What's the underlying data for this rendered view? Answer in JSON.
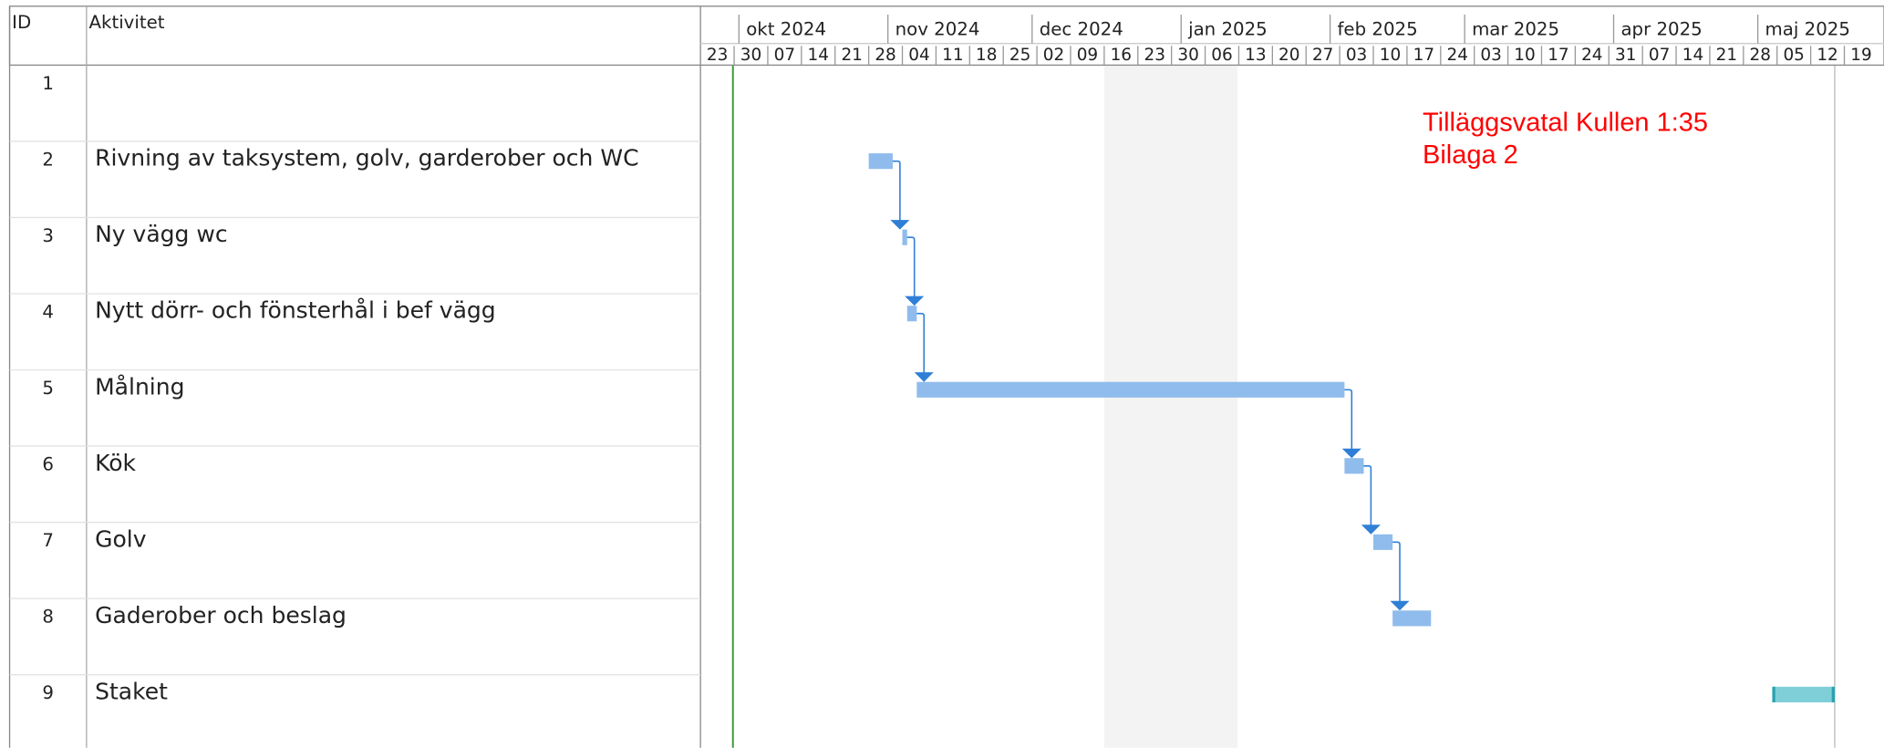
{
  "header": {
    "id": "ID",
    "activity": "Aktivitet"
  },
  "timeline": {
    "range": [
      "2024-09-23",
      "2025-05-26"
    ],
    "months": [
      {
        "label": "okt 2024",
        "date": "2024-10-01"
      },
      {
        "label": "nov 2024",
        "date": "2024-11-01"
      },
      {
        "label": "dec 2024",
        "date": "2024-12-01"
      },
      {
        "label": "jan 2025",
        "date": "2025-01-01"
      },
      {
        "label": "feb 2025",
        "date": "2025-02-01"
      },
      {
        "label": "mar 2025",
        "date": "2025-03-01"
      },
      {
        "label": "apr 2025",
        "date": "2025-04-01"
      },
      {
        "label": "maj 2025",
        "date": "2025-05-01"
      }
    ],
    "weeks": [
      "23",
      "30",
      "07",
      "14",
      "21",
      "28",
      "04",
      "11",
      "18",
      "25",
      "02",
      "09",
      "16",
      "23",
      "30",
      "06",
      "13",
      "20",
      "27",
      "03",
      "10",
      "17",
      "24",
      "03",
      "10",
      "17",
      "24",
      "31",
      "07",
      "14",
      "21",
      "28",
      "05",
      "12",
      "19"
    ]
  },
  "annotation": [
    "Tilläggsvatal Kullen  1:35",
    "Bilaga 2"
  ],
  "rows": [
    {
      "id": "1"
    },
    {
      "id": "2",
      "name": "Rivning av taksystem, golv, garderober och WC",
      "start": "2024-10-28",
      "end": "2024-11-02",
      "color": "#8fbcec"
    },
    {
      "id": "3",
      "name": "Ny vägg wc",
      "start": "2024-11-04",
      "end": "2024-11-05",
      "color": "#8fbcec"
    },
    {
      "id": "4",
      "name": "Nytt dörr- och fönsterhål i bef vägg",
      "start": "2024-11-05",
      "end": "2024-11-07",
      "color": "#8fbcec"
    },
    {
      "id": "5",
      "name": "Målning",
      "start": "2024-11-07",
      "end": "2025-02-04",
      "color": "#8fbcec"
    },
    {
      "id": "6",
      "name": "Kök",
      "start": "2025-02-04",
      "end": "2025-02-08",
      "color": "#8fbcec"
    },
    {
      "id": "7",
      "name": "Golv",
      "start": "2025-02-10",
      "end": "2025-02-14",
      "color": "#8fbcec"
    },
    {
      "id": "8",
      "name": "Gaderober och beslag",
      "start": "2025-02-14",
      "end": "2025-02-22",
      "color": "#8fbcec"
    },
    {
      "id": "9",
      "name": "Staket",
      "start": "2025-05-04",
      "end": "2025-05-17",
      "color": "#7fcfd9"
    }
  ]
}
